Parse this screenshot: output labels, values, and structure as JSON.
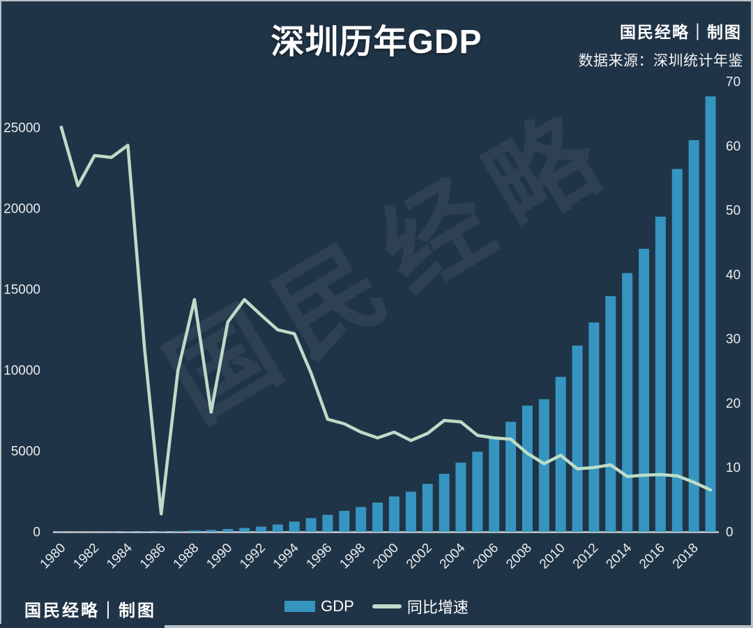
{
  "page": {
    "background": "#203447",
    "border_color": "#b9c1c8"
  },
  "header": {
    "title": "深圳历年GDP",
    "brand": "国民经略｜制图",
    "source": "数据来源：深圳统计年鉴"
  },
  "watermark": {
    "text": "国民经略"
  },
  "footer": {
    "brand": "国民经略｜制图"
  },
  "legend": {
    "gdp_label": "GDP",
    "growth_label": "同比增速"
  },
  "chart_data": {
    "type": "bar",
    "title": "深圳历年GDP",
    "xlabel": "",
    "ylabel": "",
    "grid": false,
    "legend_position": "bottom-center",
    "years": [
      1980,
      1981,
      1982,
      1983,
      1984,
      1985,
      1986,
      1987,
      1988,
      1989,
      1990,
      1991,
      1992,
      1993,
      1994,
      1995,
      1996,
      1997,
      1998,
      1999,
      2000,
      2001,
      2002,
      2003,
      2004,
      2005,
      2006,
      2007,
      2008,
      2009,
      2010,
      2011,
      2012,
      2013,
      2014,
      2015,
      2016,
      2017,
      2018,
      2019
    ],
    "x_axis_labels": [
      "1980",
      "1982",
      "1984",
      "1986",
      "1988",
      "1990",
      "1992",
      "1994",
      "1996",
      "1998",
      "2000",
      "2002",
      "2004",
      "2006",
      "2008",
      "2010",
      "2012",
      "2014",
      "2016",
      "2018"
    ],
    "series": [
      {
        "name": "GDP",
        "type": "bar",
        "axis": "left",
        "unit": "亿元",
        "color": "#3695c0",
        "values": [
          2.7,
          5.0,
          8.2,
          13.1,
          23.4,
          39.0,
          41.6,
          55.9,
          87.0,
          115.7,
          171.7,
          236.7,
          317.3,
          453.1,
          634.7,
          842.8,
          1048.4,
          1297.4,
          1534.9,
          1804.0,
          2187.5,
          2482.5,
          2969.5,
          3585.7,
          4282.1,
          4950.9,
          5813.6,
          6801.6,
          7806.5,
          8201.3,
          9581.5,
          11515.7,
          12950.1,
          14572.4,
          16001.9,
          17502.9,
          19492.6,
          22438.4,
          24221.9,
          26927.1
        ]
      },
      {
        "name": "同比增速",
        "type": "line",
        "axis": "right",
        "unit": "%",
        "color": "#bcdcc8",
        "values": [
          62.9,
          53.8,
          58.5,
          58.2,
          60.1,
          28.5,
          2.8,
          25.0,
          36.1,
          18.6,
          32.6,
          36.1,
          33.7,
          31.4,
          30.8,
          24.7,
          17.5,
          16.8,
          15.5,
          14.6,
          15.5,
          14.2,
          15.3,
          17.3,
          17.1,
          15.0,
          14.6,
          14.4,
          12.2,
          10.6,
          11.9,
          9.8,
          10.0,
          10.4,
          8.6,
          8.8,
          8.9,
          8.7,
          7.7,
          6.5
        ]
      }
    ],
    "left_axis": {
      "ticks": [
        0,
        5000,
        10000,
        15000,
        20000,
        25000
      ],
      "min": 0,
      "max": 27845
    },
    "right_axis": {
      "ticks": [
        0,
        10,
        20,
        30,
        40,
        50,
        60,
        70
      ],
      "min": 0,
      "max": 70
    },
    "axis_line_color": "#c9ced3",
    "tick_text_color": "#e9edf0"
  }
}
